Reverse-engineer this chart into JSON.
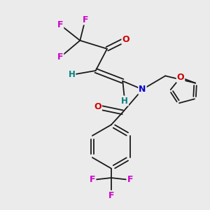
{
  "background_color": "#ebebeb",
  "bond_color": "#1a1a1a",
  "atom_colors": {
    "F": "#cc00cc",
    "O": "#cc0000",
    "N": "#0000cc",
    "H": "#008080",
    "C": "#1a1a1a"
  },
  "fs": 9,
  "fsH": 8.5,
  "lw": 1.3,
  "xlim": [
    0,
    10
  ],
  "ylim": [
    0,
    10
  ]
}
